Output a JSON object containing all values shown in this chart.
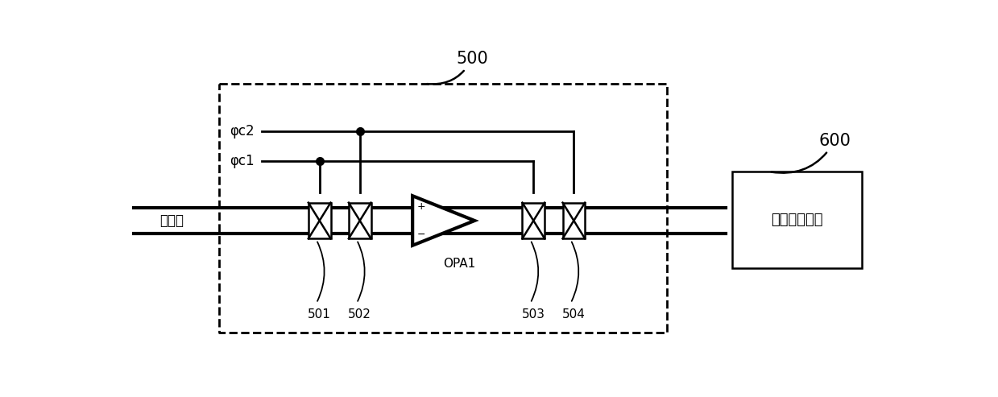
{
  "bg_color": "#ffffff",
  "line_color": "#000000",
  "fig_width": 12.39,
  "fig_height": 4.93,
  "dpi": 100,
  "label_500": "500",
  "label_600": "600",
  "label_opa": "OPA1",
  "label_input": "输入端",
  "label_filter": "第一滤波电路",
  "label_phic2": "φc2",
  "label_phic1": "φc1",
  "labels_num": [
    "501",
    "502",
    "503",
    "504"
  ],
  "lw_thick": 3.0,
  "lw_thin": 1.8,
  "lw_dashed": 2.0,
  "lw_ctrl": 2.0
}
